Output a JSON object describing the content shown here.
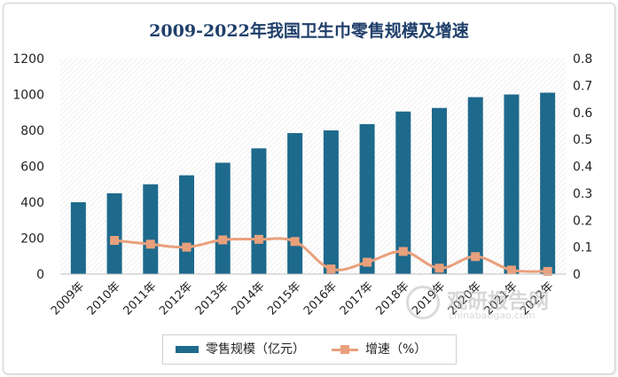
{
  "chart_data": {
    "type": "bar+line",
    "title": "2009-2022年我国卫生巾零售规模及增速",
    "categories": [
      "2009年",
      "2010年",
      "2011年",
      "2012年",
      "2013年",
      "2014年",
      "2015年",
      "2016年",
      "2017年",
      "2018年",
      "2019年",
      "2020年",
      "2021年",
      "2022年"
    ],
    "series": [
      {
        "name": "零售规模（亿元）",
        "type": "bar",
        "axis": "left",
        "color": "#1e6a8c",
        "values": [
          400,
          450,
          500,
          550,
          620,
          700,
          785,
          800,
          835,
          905,
          925,
          985,
          1000,
          1010
        ]
      },
      {
        "name": "增速（%）",
        "type": "line",
        "axis": "right",
        "color": "#e9a07c",
        "values": [
          null,
          0.125,
          0.111,
          0.1,
          0.127,
          0.129,
          0.121,
          0.019,
          0.044,
          0.084,
          0.022,
          0.065,
          0.015,
          0.01
        ]
      }
    ],
    "y_left": {
      "min": 0,
      "max": 1200,
      "ticks": [
        0,
        200,
        400,
        600,
        800,
        1000,
        1200
      ]
    },
    "y_right": {
      "min": 0,
      "max": 0.8,
      "ticks": [
        "0",
        "0.1",
        "0.2",
        "0.3",
        "0.4",
        "0.5",
        "0.6",
        "0.7",
        "0.8"
      ]
    },
    "legend": "bottom",
    "grid": false
  },
  "watermark": {
    "name": "观研报告网",
    "url": "chinabaogao.com"
  }
}
